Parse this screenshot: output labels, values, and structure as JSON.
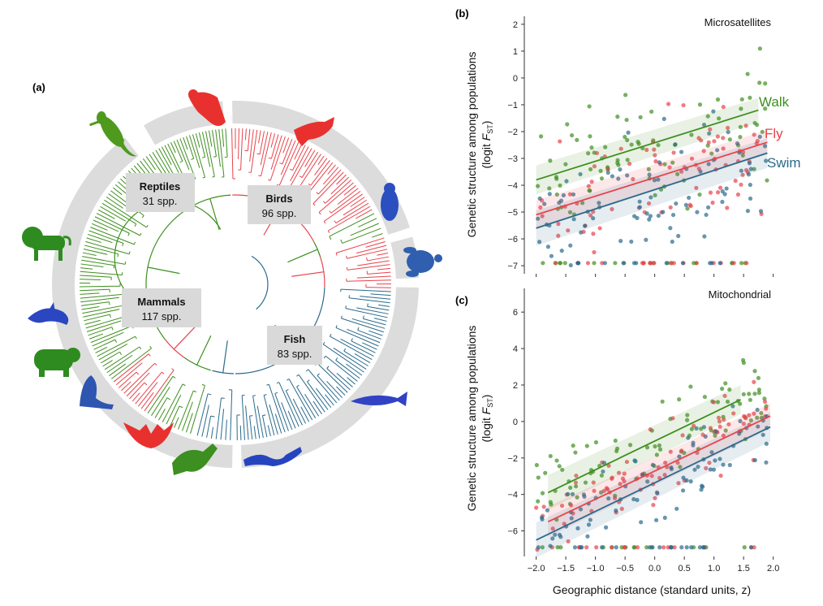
{
  "panels": {
    "a": "(a)",
    "b": "(b)",
    "c": "(c)"
  },
  "colors": {
    "walk": "#3f8f1f",
    "fly": "#e8434a",
    "swim": "#2a6a8c",
    "ring": "#dcdcdc"
  },
  "tree": {
    "clades": [
      {
        "name": "Reptiles",
        "count": "31 spp.",
        "mode": "walk"
      },
      {
        "name": "Birds",
        "count": "96 spp.",
        "mode": "fly"
      },
      {
        "name": "Mammals",
        "count": "117 spp.",
        "mode": "walk"
      },
      {
        "name": "Fish",
        "count": "83 spp.",
        "mode": "swim"
      }
    ],
    "silhouettes": [
      "lizard-icon",
      "eagle-icon",
      "bird-icon",
      "penguin-icon",
      "turtle-icon",
      "lion-icon",
      "dolphin-icon",
      "bear-icon",
      "seal-icon",
      "bat-icon",
      "kangaroo-icon",
      "eel-icon",
      "fish-icon"
    ]
  },
  "shared": {
    "ylabel_line1": "Genetic structure among populations",
    "ylabel_line2_pre": "(logit ",
    "ylabel_F": "F",
    "ylabel_sub": "ST",
    "ylabel_post": ")",
    "xlabel": "Geographic distance (standard units, z)",
    "xticks": [
      "−2.0",
      "−1.5",
      "−1.0",
      "−0.5",
      "0.0",
      "0.5",
      "1.0",
      "1.5",
      "2.0"
    ]
  },
  "chart_data": [
    {
      "type": "scatter",
      "panel": "b",
      "title": "Microsatellites",
      "xlim": [
        -2.2,
        2.1
      ],
      "ylim": [
        -7.3,
        2.3
      ],
      "yticks": [
        "2",
        "1",
        "0",
        "−1",
        "−2",
        "−3",
        "−4",
        "−5",
        "−6",
        "−7"
      ],
      "ytick_values": [
        2,
        1,
        0,
        -1,
        -2,
        -3,
        -4,
        -5,
        -6,
        -7
      ],
      "legend": [
        "Walk",
        "Fly",
        "Swim"
      ],
      "series": [
        {
          "name": "Walk",
          "line": {
            "x": [
              -2.0,
              1.75
            ],
            "y": [
              -3.8,
              -1.2
            ]
          },
          "band": 0.45
        },
        {
          "name": "Fly",
          "line": {
            "x": [
              -2.0,
              1.9
            ],
            "y": [
              -5.1,
              -2.4
            ]
          },
          "band": 0.45
        },
        {
          "name": "Swim",
          "line": {
            "x": [
              -2.0,
              1.9
            ],
            "y": [
              -5.6,
              -2.8
            ]
          },
          "band": 0.55
        }
      ],
      "floor_y": -6.9
    },
    {
      "type": "scatter",
      "panel": "c",
      "title": "Mitochondrial",
      "xlim": [
        -2.2,
        2.1
      ],
      "ylim": [
        -7.4,
        7.3
      ],
      "yticks": [
        "6",
        "4",
        "2",
        "0",
        "−2",
        "−4",
        "−6"
      ],
      "ytick_values": [
        6,
        4,
        2,
        0,
        -2,
        -4,
        -6
      ],
      "series": [
        {
          "name": "Walk",
          "line": {
            "x": [
              -1.8,
              1.45
            ],
            "y": [
              -3.9,
              1.2
            ]
          },
          "band": 0.8
        },
        {
          "name": "Fly",
          "line": {
            "x": [
              -1.8,
              1.95
            ],
            "y": [
              -5.5,
              0.3
            ]
          },
          "band": 0.7
        },
        {
          "name": "Swim",
          "line": {
            "x": [
              -2.0,
              1.95
            ],
            "y": [
              -6.5,
              -0.3
            ]
          },
          "band": 0.8
        }
      ],
      "floor_y": -6.9
    }
  ]
}
